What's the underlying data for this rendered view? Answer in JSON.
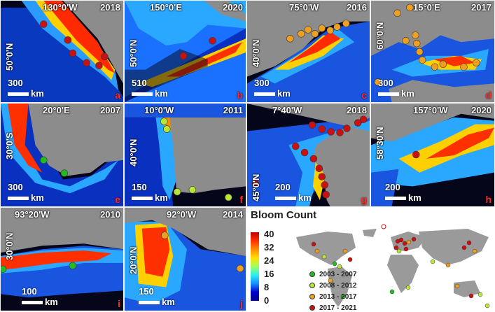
{
  "panels": [
    {
      "id": "a",
      "lon": "130°0'W",
      "lat": "50°0'N",
      "year": "2018",
      "scale": "300",
      "unit": "km"
    },
    {
      "id": "b",
      "lon": "150°0'E",
      "lat": "50°0'N",
      "year": "2020",
      "scale": "510",
      "unit": "km"
    },
    {
      "id": "c",
      "lon": "75°0'W",
      "lat": "40°0'N",
      "year": "2016",
      "scale": "300",
      "unit": "km"
    },
    {
      "id": "d",
      "lon": "15°0'E",
      "lat": "60°0'N",
      "year": "2017",
      "scale": "300",
      "unit": "km"
    },
    {
      "id": "e",
      "lon": "20°0'E",
      "lat": "30°0'S",
      "year": "2007",
      "scale": "300",
      "unit": "km"
    },
    {
      "id": "f",
      "lon": "10°0'W",
      "lat": "40°0'N",
      "year": "2011",
      "scale": "150",
      "unit": "km"
    },
    {
      "id": "g",
      "lon": "7°40'W",
      "lat": "45°0'N",
      "year": "2018",
      "scale": "200",
      "unit": "km"
    },
    {
      "id": "h",
      "lon": "157°0'W",
      "lat": "58°30'N",
      "year": "2020",
      "scale": "200",
      "unit": "km"
    },
    {
      "id": "i",
      "lon": "93°20'W",
      "lat": "30°0'N",
      "year": "2010",
      "scale": "100",
      "unit": "km"
    },
    {
      "id": "j",
      "lon": "92°0'W",
      "lat": "20°0'N",
      "year": "2014",
      "scale": "150",
      "unit": "km"
    }
  ],
  "legend": {
    "title": "Bloom Count",
    "ticks": [
      "40",
      "32",
      "24",
      "16",
      "8",
      "0"
    ],
    "colorbar": [
      "#c00000",
      "#ff3000",
      "#ff8c00",
      "#ffe000",
      "#9eff5e",
      "#2af0f0",
      "#1a8cff",
      "#0000c8",
      "#00008c"
    ],
    "periods": [
      {
        "label": "2003 - 2007",
        "color": "#22bb22"
      },
      {
        "label": "2008 - 2012",
        "color": "#b8e636"
      },
      {
        "label": "2013 - 2017",
        "color": "#f0a020"
      },
      {
        "label": "2017 - 2021",
        "color": "#cc1010"
      }
    ]
  },
  "colors": {
    "land": "#8c8c8c",
    "ocean_deep": "#0a0a18"
  }
}
